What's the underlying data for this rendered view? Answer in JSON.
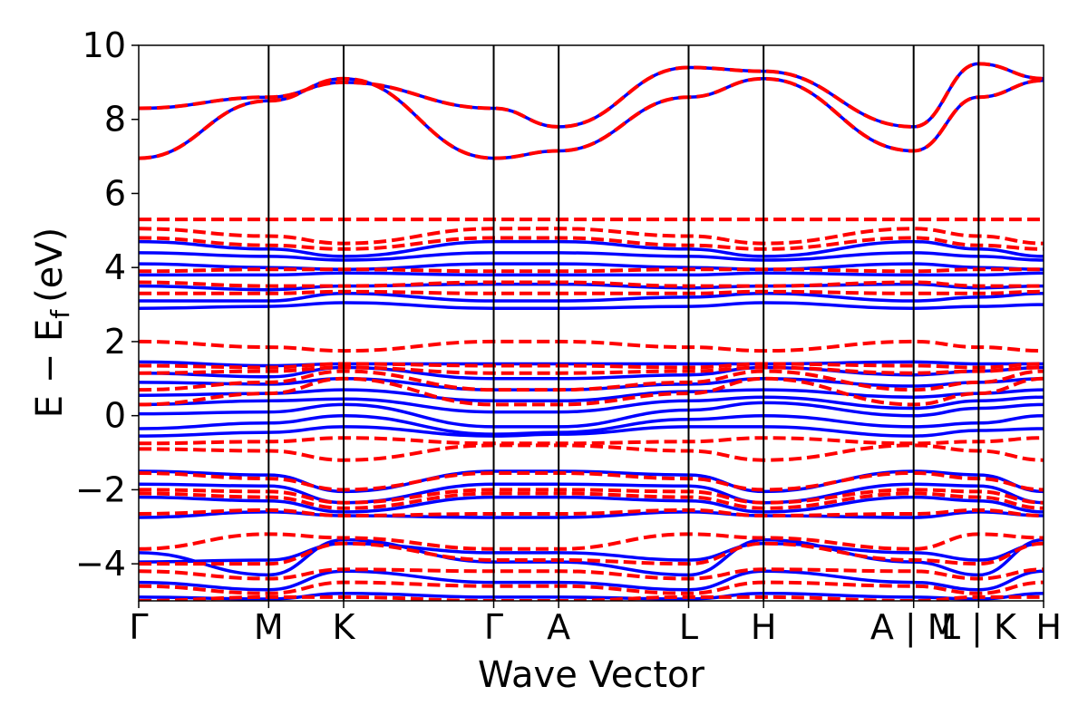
{
  "chart_data": {
    "type": "line",
    "xlabel": "Wave Vector",
    "ylabel": "E − E",
    "ylabel_sub": "f",
    "ylabel_unit": "(eV)",
    "ylim": [
      -5,
      10
    ],
    "yticks": [
      -4,
      -2,
      0,
      2,
      4,
      6,
      8,
      10
    ],
    "ytick_labels": [
      "−4",
      "−2",
      "0",
      "2",
      "4",
      "6",
      "8",
      "10"
    ],
    "kpath": [
      {
        "label": "Γ",
        "k": 0.0
      },
      {
        "label": "M",
        "k": 1.0
      },
      {
        "label": "K",
        "k": 1.577
      },
      {
        "label": "Γ",
        "k": 2.732
      },
      {
        "label": "A",
        "k": 3.232
      },
      {
        "label": "L",
        "k": 4.232
      },
      {
        "label": "H",
        "k": 4.809
      },
      {
        "label": "A | M",
        "k": 5.964
      },
      {
        "label": "L | K",
        "k": 6.464
      },
      {
        "label": "H",
        "k": 6.964
      }
    ],
    "series": [
      {
        "style": "solid",
        "color": "#0000ff",
        "bands": [
          [
            -0.55,
            -0.45,
            -0.3,
            -0.55,
            -0.5,
            -0.3,
            -0.3,
            -0.55,
            -0.4,
            -0.35
          ],
          [
            -0.35,
            -0.2,
            0.0,
            -0.5,
            -0.45,
            -0.1,
            0.0,
            -0.3,
            -0.2,
            0.0
          ],
          [
            0.05,
            0.1,
            0.3,
            -0.3,
            -0.3,
            0.15,
            0.35,
            0.0,
            0.2,
            0.3
          ],
          [
            0.3,
            0.4,
            0.45,
            0.1,
            0.1,
            0.4,
            0.5,
            0.2,
            0.4,
            0.5
          ],
          [
            0.55,
            0.6,
            0.7,
            0.4,
            0.4,
            0.65,
            0.7,
            0.5,
            0.6,
            0.7
          ],
          [
            0.9,
            0.85,
            1.0,
            0.7,
            0.7,
            0.85,
            1.0,
            0.8,
            0.9,
            1.0
          ],
          [
            1.15,
            1.05,
            1.3,
            1.0,
            1.0,
            1.1,
            1.3,
            1.1,
            1.2,
            1.3
          ],
          [
            1.45,
            1.35,
            1.4,
            1.4,
            1.4,
            1.4,
            1.4,
            1.45,
            1.4,
            1.4
          ],
          [
            2.9,
            2.95,
            3.05,
            2.9,
            2.9,
            2.95,
            3.05,
            2.9,
            2.95,
            3.0
          ],
          [
            3.1,
            3.1,
            3.3,
            3.1,
            3.1,
            3.2,
            3.3,
            3.1,
            3.2,
            3.3
          ],
          [
            3.5,
            3.4,
            3.5,
            3.55,
            3.55,
            3.45,
            3.5,
            3.55,
            3.45,
            3.5
          ],
          [
            3.8,
            3.8,
            3.85,
            3.8,
            3.8,
            3.8,
            3.85,
            3.8,
            3.8,
            3.85
          ],
          [
            4.1,
            4.0,
            3.95,
            4.1,
            4.1,
            4.0,
            3.95,
            4.1,
            4.0,
            3.95
          ],
          [
            4.4,
            4.3,
            4.2,
            4.4,
            4.4,
            4.3,
            4.2,
            4.4,
            4.3,
            4.2
          ],
          [
            4.7,
            4.5,
            4.3,
            4.7,
            4.7,
            4.5,
            4.3,
            4.7,
            4.5,
            4.3
          ],
          [
            6.95,
            8.5,
            9.1,
            6.95,
            7.15,
            8.6,
            9.1,
            7.15,
            8.6,
            9.05
          ],
          [
            8.3,
            8.6,
            9.0,
            8.3,
            7.8,
            9.4,
            9.3,
            7.8,
            9.5,
            9.1
          ],
          [
            -1.5,
            -1.6,
            -2.05,
            -1.5,
            -1.5,
            -1.6,
            -2.05,
            -1.5,
            -1.6,
            -2.05
          ],
          [
            -1.85,
            -1.9,
            -2.35,
            -1.85,
            -1.85,
            -1.9,
            -2.35,
            -1.85,
            -1.9,
            -2.35
          ],
          [
            -2.2,
            -2.3,
            -2.6,
            -2.2,
            -2.2,
            -2.3,
            -2.6,
            -2.2,
            -2.3,
            -2.6
          ],
          [
            -2.75,
            -2.6,
            -2.7,
            -2.75,
            -2.75,
            -2.6,
            -2.7,
            -2.75,
            -2.6,
            -2.7
          ],
          [
            -3.95,
            -3.9,
            -3.45,
            -3.7,
            -3.7,
            -3.9,
            -3.45,
            -3.7,
            -3.9,
            -3.45
          ],
          [
            -3.7,
            -4.3,
            -3.35,
            -3.95,
            -3.95,
            -4.3,
            -3.35,
            -3.95,
            -4.3,
            -3.35
          ],
          [
            -4.5,
            -4.7,
            -4.2,
            -4.5,
            -4.5,
            -4.7,
            -4.2,
            -4.5,
            -4.7,
            -4.2
          ],
          [
            -4.9,
            -4.95,
            -4.8,
            -4.9,
            -4.9,
            -4.95,
            -4.8,
            -4.9,
            -4.95,
            -4.8
          ]
        ]
      },
      {
        "style": "dashed",
        "color": "#ff0000",
        "bands": [
          [
            -0.75,
            -0.7,
            -0.6,
            -0.75,
            -0.75,
            -0.7,
            -0.6,
            -0.75,
            -0.7,
            -0.6
          ],
          [
            -0.9,
            -0.95,
            -1.2,
            -0.8,
            -0.8,
            -0.95,
            -1.2,
            -0.8,
            -0.95,
            -1.2
          ],
          [
            0.3,
            0.6,
            1.0,
            0.3,
            0.3,
            0.6,
            1.0,
            0.3,
            0.6,
            1.0
          ],
          [
            0.7,
            0.9,
            1.2,
            0.7,
            0.7,
            0.9,
            1.2,
            0.7,
            0.9,
            1.2
          ],
          [
            1.15,
            1.2,
            1.3,
            1.15,
            1.15,
            1.2,
            1.3,
            1.15,
            1.2,
            1.3
          ],
          [
            1.35,
            1.3,
            1.4,
            1.35,
            1.35,
            1.3,
            1.4,
            1.35,
            1.3,
            1.4
          ],
          [
            2.0,
            1.85,
            1.75,
            2.0,
            2.0,
            1.85,
            1.75,
            2.0,
            1.85,
            1.75
          ],
          [
            3.3,
            3.3,
            3.35,
            3.3,
            3.3,
            3.3,
            3.35,
            3.3,
            3.3,
            3.35
          ],
          [
            3.6,
            3.5,
            3.5,
            3.6,
            3.6,
            3.5,
            3.5,
            3.6,
            3.5,
            3.5
          ],
          [
            3.9,
            3.95,
            3.95,
            3.9,
            3.9,
            3.95,
            3.95,
            3.9,
            3.95,
            3.95
          ],
          [
            4.8,
            4.6,
            4.5,
            4.8,
            4.8,
            4.6,
            4.5,
            4.8,
            4.6,
            4.5
          ],
          [
            5.05,
            4.85,
            4.65,
            5.05,
            5.05,
            4.85,
            4.65,
            5.05,
            4.85,
            4.65
          ],
          [
            5.3,
            5.3,
            5.3,
            5.3,
            5.3,
            5.3,
            5.3,
            5.3,
            5.3,
            5.3
          ],
          [
            -1.55,
            -1.7,
            -2.0,
            -1.55,
            -1.55,
            -1.7,
            -2.0,
            -1.55,
            -1.7,
            -2.0
          ],
          [
            -2.0,
            -2.05,
            -2.35,
            -2.0,
            -2.0,
            -2.05,
            -2.35,
            -2.0,
            -2.05,
            -2.35
          ],
          [
            -2.1,
            -2.2,
            -2.5,
            -2.1,
            -2.1,
            -2.2,
            -2.5,
            -2.1,
            -2.2,
            -2.5
          ],
          [
            -2.65,
            -2.55,
            -2.7,
            -2.65,
            -2.65,
            -2.55,
            -2.7,
            -2.65,
            -2.55,
            -2.7
          ],
          [
            -3.6,
            -3.2,
            -3.3,
            -3.6,
            -3.6,
            -3.2,
            -3.3,
            -3.6,
            -3.2,
            -3.3
          ],
          [
            -4.0,
            -4.0,
            -3.45,
            -3.9,
            -3.9,
            -4.0,
            -3.45,
            -3.9,
            -4.0,
            -3.45
          ],
          [
            -4.2,
            -4.4,
            -4.15,
            -4.2,
            -4.2,
            -4.4,
            -4.15,
            -4.2,
            -4.4,
            -4.15
          ],
          [
            -4.6,
            -4.8,
            -4.5,
            -4.6,
            -4.6,
            -4.8,
            -4.5,
            -4.6,
            -4.8,
            -4.5
          ],
          [
            -5.0,
            -4.9,
            -4.9,
            -5.0,
            -5.0,
            -4.9,
            -4.9,
            -5.0,
            -4.9,
            -4.9
          ],
          [
            6.95,
            8.5,
            9.1,
            6.95,
            7.15,
            8.6,
            9.1,
            7.15,
            8.6,
            9.05
          ],
          [
            8.3,
            8.6,
            9.0,
            8.3,
            7.8,
            9.4,
            9.3,
            7.8,
            9.5,
            9.1
          ]
        ]
      }
    ]
  }
}
